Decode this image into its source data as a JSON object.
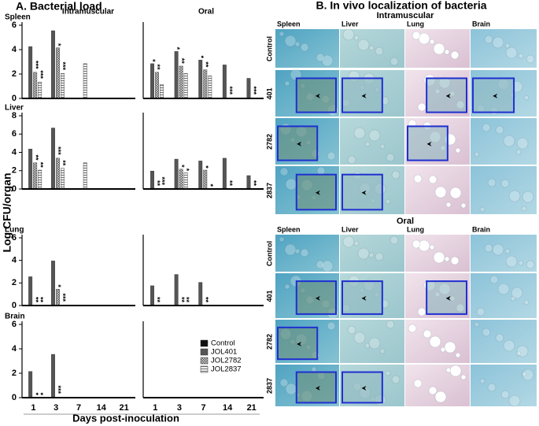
{
  "chart_data": {
    "type": "bar",
    "title": "A. Bacterial load",
    "columns": [
      "Intramuscular",
      "Oral"
    ],
    "categories": [
      1,
      3,
      7,
      14,
      21
    ],
    "x_label": "Days post-inoculation",
    "y_label": "Log CFU/organ",
    "legend": [
      {
        "name": "Control",
        "color": "#111111",
        "pattern": "solid"
      },
      {
        "name": "JOL401",
        "color": "#555555",
        "pattern": "solid"
      },
      {
        "name": "JOL2782",
        "color": "#888888",
        "pattern": "checker"
      },
      {
        "name": "JOL2837",
        "color": "#999999",
        "pattern": "hstripe"
      }
    ],
    "charts": [
      {
        "title": "Spleen",
        "ylim": [
          0,
          6
        ],
        "yticks": [
          0,
          2,
          4,
          6
        ],
        "series": [
          {
            "values": [
              0,
              0,
              0,
              0,
              0
            ]
          },
          {
            "values": [
              4.2,
              5.5,
              0,
              0,
              0
            ]
          },
          {
            "values": [
              2.1,
              4.1,
              0,
              0,
              0
            ]
          },
          {
            "values": [
              1.3,
              2.0,
              2.8,
              0,
              0
            ]
          }
        ],
        "annotations": [
          {
            "text": "***",
            "category": 0,
            "series": 2
          },
          {
            "text": "***",
            "category": 0,
            "series": 3
          },
          {
            "text": "*",
            "category": 1,
            "series": 2
          },
          {
            "text": "***",
            "category": 1,
            "series": 3
          }
        ]
      },
      {
        "ylim": [
          0,
          6
        ],
        "series": [
          {
            "values": [
              0,
              0,
              0,
              0,
              0
            ]
          },
          {
            "values": [
              2.8,
              3.8,
              3.1,
              2.7,
              1.6
            ]
          },
          {
            "values": [
              2.1,
              2.6,
              2.3,
              0,
              0
            ]
          },
          {
            "values": [
              1.1,
              2.0,
              1.8,
              0,
              0
            ]
          }
        ],
        "annotations": [
          {
            "text": "*",
            "category": 0,
            "series": 1
          },
          {
            "text": "**",
            "category": 0,
            "series": 2
          },
          {
            "text": "*",
            "category": 1,
            "series": 1
          },
          {
            "text": "**",
            "category": 1,
            "series": 2
          },
          {
            "text": "*",
            "category": 2,
            "series": 1
          },
          {
            "text": "**",
            "category": 2,
            "series": 2
          },
          {
            "text": "***",
            "category": 3,
            "series": 2
          },
          {
            "text": "***",
            "category": 4,
            "series": 2
          }
        ]
      },
      {
        "title": "Liver",
        "ylim": [
          0,
          8
        ],
        "yticks": [
          0,
          2,
          4,
          6,
          8
        ],
        "series": [
          {
            "values": [
              0,
              0,
              0,
              0,
              0
            ]
          },
          {
            "values": [
              4.3,
              6.6,
              0,
              0,
              0
            ]
          },
          {
            "values": [
              2.8,
              3.3,
              0,
              0,
              0
            ]
          },
          {
            "values": [
              2.0,
              2.2,
              2.8,
              0,
              0
            ]
          }
        ],
        "annotations": [
          {
            "text": "**",
            "category": 0,
            "series": 2
          },
          {
            "text": "**",
            "category": 0,
            "series": 3
          },
          {
            "text": "***",
            "category": 1,
            "series": 2
          },
          {
            "text": "**",
            "category": 1,
            "series": 3
          }
        ]
      },
      {
        "ylim": [
          0,
          8
        ],
        "series": [
          {
            "values": [
              0,
              0,
              0,
              0,
              0
            ]
          },
          {
            "values": [
              1.9,
              3.2,
              3.0,
              3.3,
              1.4
            ]
          },
          {
            "values": [
              0,
              2.1,
              2.0,
              0,
              0
            ]
          },
          {
            "values": [
              0,
              1.7,
              0,
              0,
              0
            ]
          }
        ],
        "annotations": [
          {
            "text": "**",
            "category": 0,
            "series": 2
          },
          {
            "text": "***",
            "category": 0,
            "series": 3
          },
          {
            "text": "*",
            "category": 1,
            "series": 2
          },
          {
            "text": "*",
            "category": 1,
            "series": 3
          },
          {
            "text": "*",
            "category": 2,
            "series": 2
          },
          {
            "text": "*",
            "category": 2,
            "series": 3
          },
          {
            "text": "**",
            "category": 3,
            "series": 2
          },
          {
            "text": "**",
            "category": 4,
            "series": 2
          }
        ]
      },
      {
        "title": "Lung",
        "ylim": [
          0,
          6
        ],
        "yticks": [
          0,
          2,
          4,
          6
        ],
        "series": [
          {
            "values": [
              0,
              0,
              0,
              0,
              0
            ]
          },
          {
            "values": [
              2.5,
              3.9,
              0,
              0,
              0
            ]
          },
          {
            "values": [
              0,
              1.4,
              0,
              0,
              0
            ]
          },
          {
            "values": [
              0,
              0,
              0,
              0,
              0
            ]
          }
        ],
        "annotations": [
          {
            "text": "**",
            "category": 0,
            "series": 2
          },
          {
            "text": "**",
            "category": 0,
            "series": 3
          },
          {
            "text": "*",
            "category": 1,
            "series": 2
          },
          {
            "text": "***",
            "category": 1,
            "series": 3
          }
        ]
      },
      {
        "ylim": [
          0,
          6
        ],
        "series": [
          {
            "values": [
              0,
              0,
              0,
              0,
              0
            ]
          },
          {
            "values": [
              1.7,
              2.7,
              2.0,
              0,
              0
            ]
          },
          {
            "values": [
              0,
              0,
              0,
              0,
              0
            ]
          },
          {
            "values": [
              0,
              0,
              0,
              0,
              0
            ]
          }
        ],
        "annotations": [
          {
            "text": "**",
            "category": 0,
            "series": 2
          },
          {
            "text": "**",
            "category": 1,
            "series": 2
          },
          {
            "text": "**",
            "category": 1,
            "series": 3
          },
          {
            "text": "**",
            "category": 2,
            "series": 2
          }
        ]
      },
      {
        "title": "Brain",
        "ylim": [
          0,
          6
        ],
        "yticks": [
          0,
          2,
          4,
          6
        ],
        "series": [
          {
            "values": [
              0,
              0,
              0,
              0,
              0
            ]
          },
          {
            "values": [
              2.1,
              3.5,
              0,
              0,
              0
            ]
          },
          {
            "values": [
              0,
              0,
              0,
              0,
              0
            ]
          },
          {
            "values": [
              0,
              0,
              0,
              0,
              0
            ]
          }
        ],
        "annotations": [
          {
            "text": "*",
            "category": 0,
            "series": 2
          },
          {
            "text": "*",
            "category": 0,
            "series": 3
          },
          {
            "text": "***",
            "category": 1,
            "series": 2
          }
        ]
      },
      {
        "ylim": [
          0,
          6
        ],
        "series": [
          {
            "values": [
              0,
              0,
              0,
              0,
              0
            ]
          },
          {
            "values": [
              0,
              0,
              0,
              0,
              0
            ]
          },
          {
            "values": [
              0,
              0,
              0,
              0,
              0
            ]
          },
          {
            "values": [
              0,
              0,
              0,
              0,
              0
            ]
          }
        ],
        "annotations": []
      }
    ]
  },
  "panel_b": {
    "title": "B. In vivo localization of bacteria",
    "sections": [
      "Intramuscular",
      "Oral"
    ],
    "columns": [
      "Spleen",
      "Liver",
      "Lung",
      "Brain"
    ],
    "rows": [
      "Control",
      "401",
      "2782",
      "2837"
    ]
  }
}
